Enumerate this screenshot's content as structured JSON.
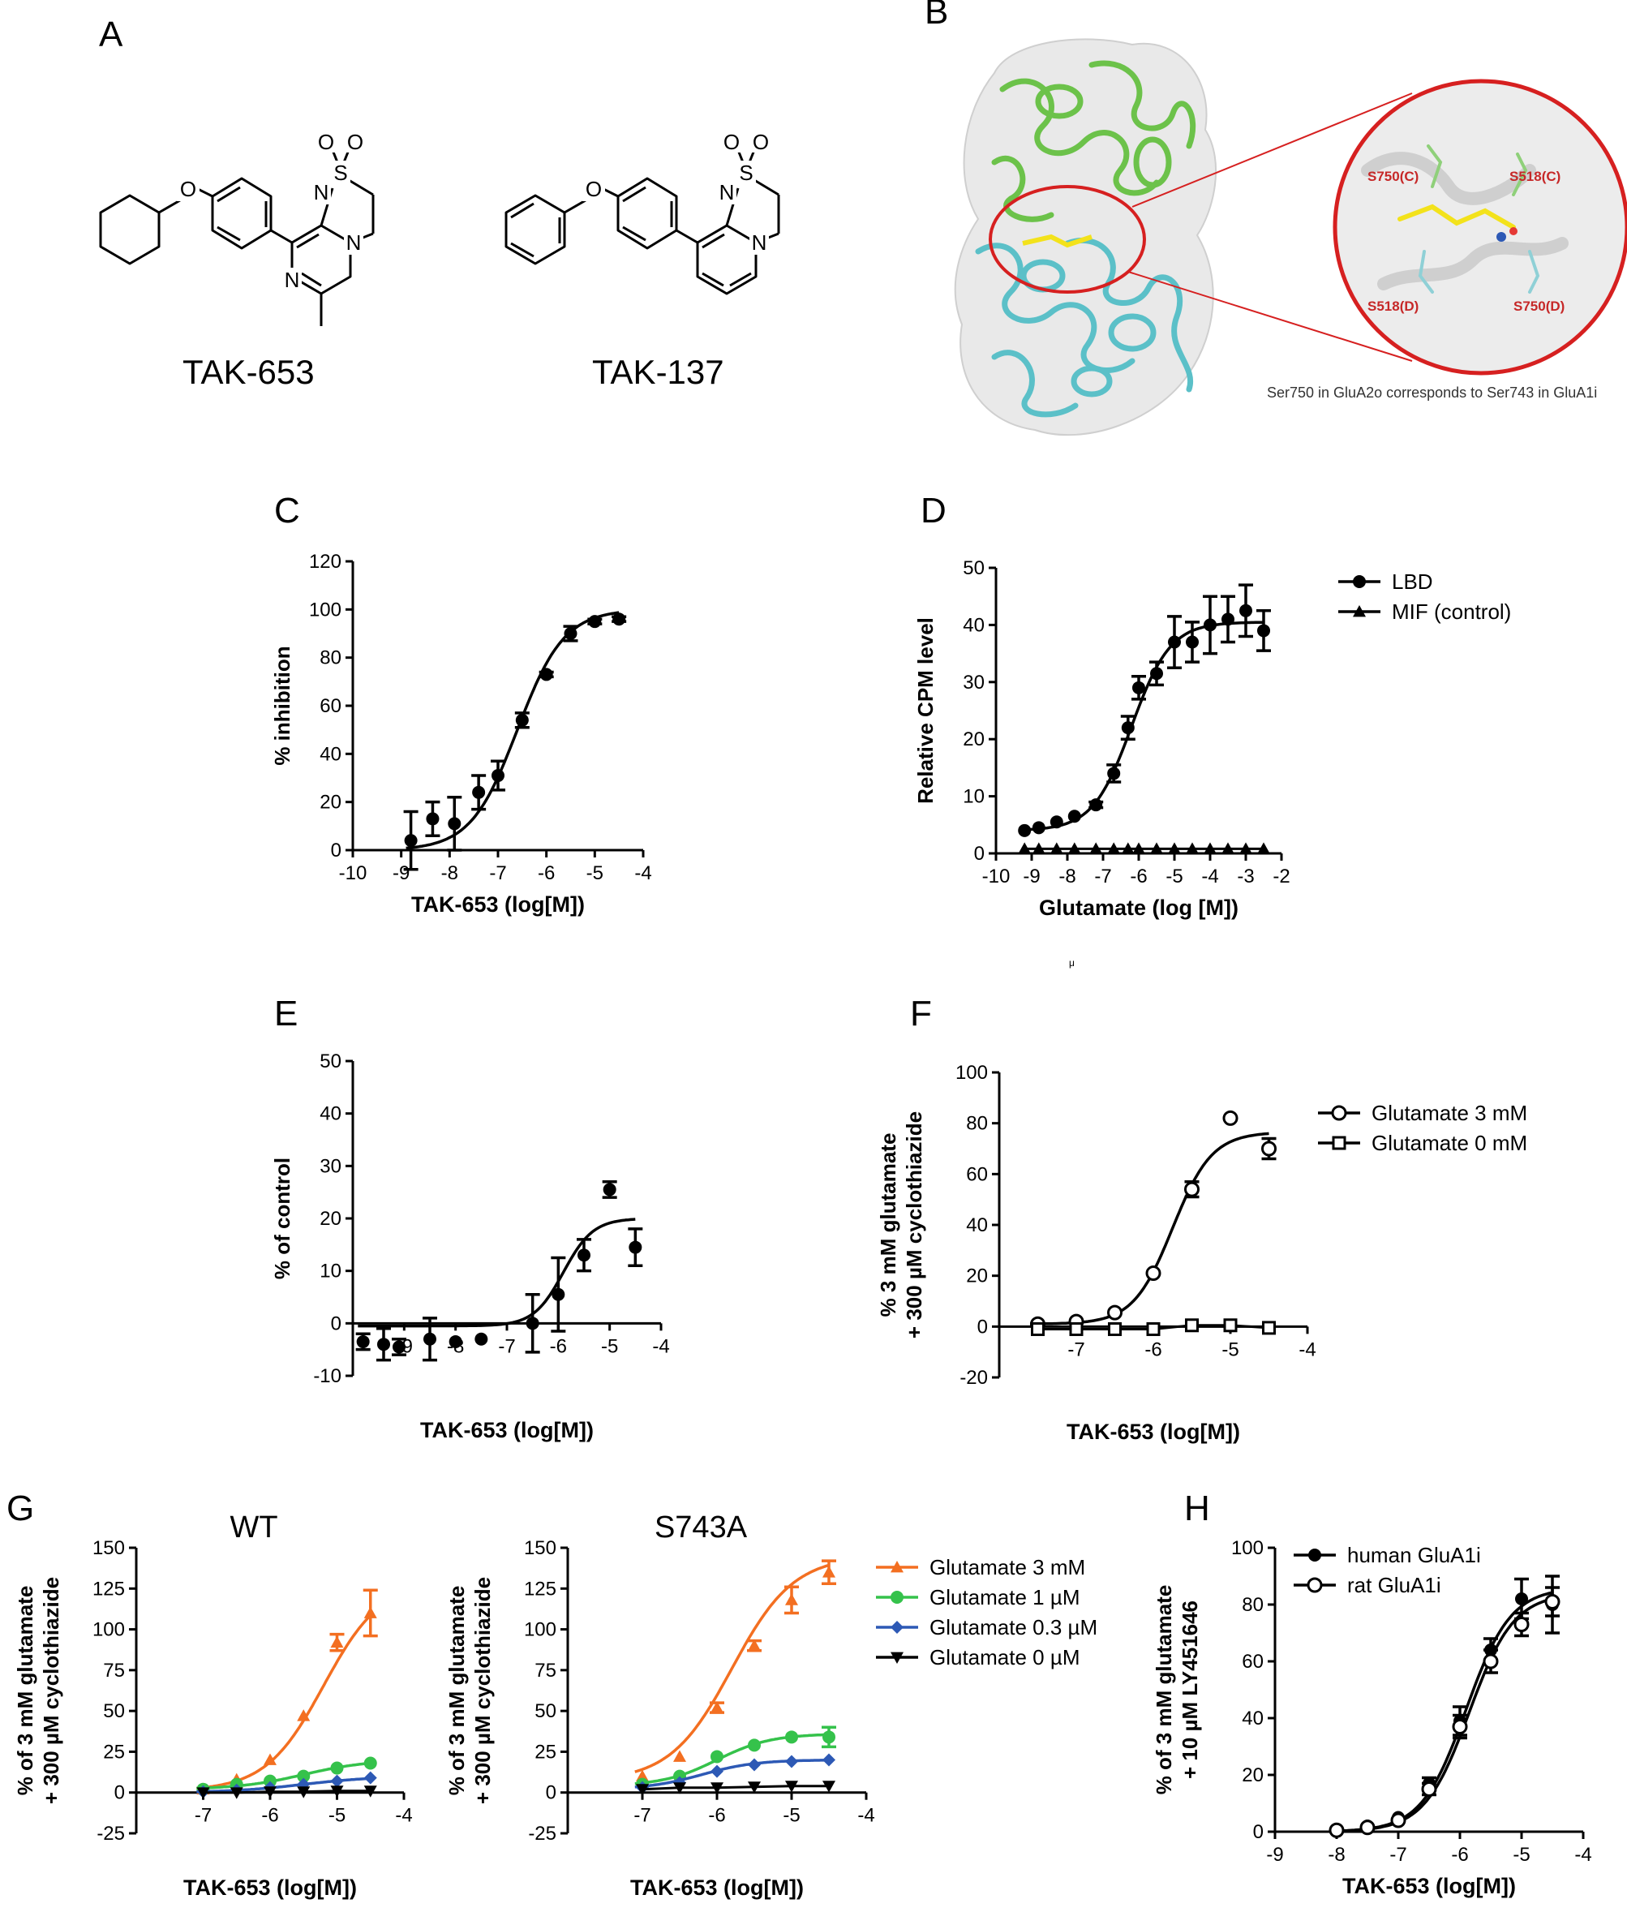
{
  "panel_labels": {
    "A": "A",
    "B": "B",
    "C": "C",
    "D": "D",
    "E": "E",
    "F": "F",
    "G": "G",
    "H": "H"
  },
  "panel_a": {
    "compounds": [
      {
        "name": "TAK-653",
        "atoms": [
          "O",
          "O",
          "O",
          "S",
          "N",
          "N",
          "N"
        ]
      },
      {
        "name": "TAK-137",
        "atoms": [
          "O",
          "O",
          "O",
          "S",
          "N",
          "N"
        ]
      }
    ]
  },
  "panel_b": {
    "residue_labels": [
      "S750(C)",
      "S518(C)",
      "S518(D)",
      "S750(D)"
    ],
    "caption": "Ser750 in GluA2o corresponds to Ser743 in GluA1i",
    "colors": {
      "chain_c": "#6cc24a",
      "chain_d": "#5bc0c8",
      "ligand": "#f3e21b",
      "label": "#c62828",
      "circle": "#d62020",
      "surface": "#e9e9e9"
    }
  },
  "stray_mark": "μ",
  "chart_data": [
    {
      "id": "C",
      "type": "scatter",
      "xlabel": "TAK-653 (log[M])",
      "ylabel": "% inhibition",
      "xlim": [
        -10,
        -4
      ],
      "ylim": [
        0,
        120
      ],
      "xticks": [
        -10,
        -9,
        -8,
        -7,
        -6,
        -5,
        -4
      ],
      "yticks": [
        0,
        20,
        40,
        60,
        80,
        100,
        120
      ],
      "series": [
        {
          "marker": "circle-filled",
          "color": "#000000",
          "x": [
            -8.8,
            -8.35,
            -7.9,
            -7.4,
            -7.0,
            -6.5,
            -6.0,
            -5.5,
            -5.0,
            -4.5
          ],
          "y": [
            4,
            13,
            11,
            24,
            31,
            54,
            73,
            90,
            95,
            96
          ],
          "err": [
            12,
            7,
            11,
            7,
            6,
            3,
            1,
            3,
            1,
            1
          ],
          "fit": {
            "bottom": 0,
            "top": 100,
            "logEC50": -6.6,
            "hill": 0.9
          }
        }
      ]
    },
    {
      "id": "D",
      "type": "scatter",
      "xlabel": "Glutamate (log [M])",
      "ylabel": "Relative CPM level",
      "xlim": [
        -10,
        -2
      ],
      "ylim": [
        0,
        50
      ],
      "xticks": [
        -10,
        -9,
        -8,
        -7,
        -6,
        -5,
        -4,
        -3,
        -2
      ],
      "yticks": [
        0,
        10,
        20,
        30,
        40,
        50
      ],
      "legend": "right",
      "series": [
        {
          "name": "LBD",
          "marker": "circle-filled",
          "color": "#000000",
          "x": [
            -9.2,
            -8.8,
            -8.3,
            -7.8,
            -7.2,
            -6.7,
            -6.3,
            -6.0,
            -5.5,
            -5.0,
            -4.5,
            -4.0,
            -3.5,
            -3.0,
            -2.5
          ],
          "y": [
            4,
            4.5,
            5.5,
            6.5,
            8.5,
            14,
            22,
            29,
            31.5,
            37,
            37,
            40,
            41,
            42.5,
            39
          ],
          "err": [
            0,
            0,
            0,
            0,
            0.5,
            1.5,
            2,
            2,
            2,
            4.5,
            3.5,
            5,
            4,
            4.5,
            3.5
          ],
          "fit": {
            "bottom": 4,
            "top": 40.5,
            "logEC50": -6.2,
            "hill": 0.8
          }
        },
        {
          "name": "MIF (control)",
          "marker": "triangle-filled",
          "color": "#000000",
          "x": [
            -9.2,
            -8.8,
            -8.3,
            -7.8,
            -7.2,
            -6.7,
            -6.3,
            -6.0,
            -5.5,
            -5.0,
            -4.5,
            -4.0,
            -3.5,
            -3.0,
            -2.5
          ],
          "y": [
            0.8,
            0.8,
            0.8,
            0.8,
            0.8,
            0.8,
            0.8,
            0.8,
            0.8,
            0.8,
            0.8,
            0.8,
            0.8,
            0.8,
            0.8
          ],
          "line": true
        }
      ]
    },
    {
      "id": "E",
      "type": "scatter",
      "xlabel": "TAK-653 (log[M])",
      "ylabel": "% of control",
      "xlim": [
        -10,
        -4
      ],
      "ylim": [
        -10,
        50
      ],
      "xticks": [
        -9,
        -8,
        -7,
        -6,
        -5,
        -4
      ],
      "xticklabels": [
        "-9",
        "-8",
        "-7",
        "-6",
        "-5",
        "-4"
      ],
      "yticks": [
        -10,
        0,
        10,
        20,
        30,
        40,
        50
      ],
      "series": [
        {
          "marker": "circle-filled",
          "color": "#000000",
          "x": [
            -9.8,
            -9.4,
            -9.1,
            -8.5,
            -8.0,
            -7.5,
            -6.5,
            -6.0,
            -5.5,
            -5.0,
            -4.5
          ],
          "y": [
            -3.5,
            -4,
            -4.5,
            -3,
            -3.5,
            -3,
            0,
            5.5,
            13,
            25.5,
            14.5
          ],
          "err": [
            1.5,
            3,
            1.5,
            4,
            0,
            0,
            5.5,
            7,
            3,
            1.5,
            3.5
          ],
          "fit": {
            "bottom": -0.5,
            "top": 20,
            "logEC50": -5.9,
            "hill": 1.5
          }
        }
      ]
    },
    {
      "id": "F",
      "type": "scatter",
      "xlabel": "TAK-653 (log[M])",
      "ylabel": "% 3 mM glutamate\n+ 300 µM cyclothiazide",
      "xlim": [
        -8,
        -4
      ],
      "ylim": [
        -20,
        100
      ],
      "xticks": [
        -7,
        -6,
        -5,
        -4
      ],
      "yticks": [
        -20,
        0,
        20,
        40,
        60,
        80,
        100
      ],
      "legend": "right",
      "series": [
        {
          "name": "Glutamate  3 mM",
          "marker": "circle-open",
          "color": "#000000",
          "x": [
            -7.5,
            -7.0,
            -6.5,
            -6.0,
            -5.5,
            -5.0,
            -4.5
          ],
          "y": [
            1,
            2,
            5.5,
            21,
            54,
            82,
            70
          ],
          "err": [
            0,
            0,
            0,
            0,
            3,
            0,
            4
          ],
          "fit": {
            "bottom": 1,
            "top": 76.5,
            "logEC50": -5.75,
            "hill": 1.7
          }
        },
        {
          "name": "Glutamate  0 mM",
          "marker": "square-open",
          "color": "#000000",
          "x": [
            -7.5,
            -7.0,
            -6.5,
            -6.0,
            -5.5,
            -5.0,
            -4.5
          ],
          "y": [
            -1,
            -1,
            -1,
            -1,
            0.5,
            0.5,
            -0.5
          ],
          "line": true
        }
      ]
    },
    {
      "id": "G-WT",
      "type": "scatter",
      "title": "WT",
      "xlabel": "TAK-653 (log[M])",
      "ylabel": "% of 3 mM glutamate\n+ 300 µM cyclothiazide",
      "xlim": [
        -8,
        -4
      ],
      "ylim": [
        -25,
        150
      ],
      "xticks": [
        -7,
        -6,
        -5,
        -4
      ],
      "yticks": [
        -25,
        0,
        25,
        50,
        75,
        100,
        125,
        150
      ],
      "series": [
        {
          "name": "Glutamate  3 mM",
          "marker": "triangle-filled",
          "color": "#f36f21",
          "x": [
            -7.0,
            -6.5,
            -6.0,
            -5.5,
            -5.0,
            -4.5
          ],
          "y": [
            2,
            8,
            20,
            47,
            92,
            110
          ],
          "err": [
            0,
            0,
            0,
            0,
            5,
            14
          ],
          "fit": {
            "bottom": 1,
            "top": 130,
            "logEC50": -5.2,
            "hill": 1.0
          }
        },
        {
          "name": "Glutamate  1 µM",
          "marker": "circle-filled",
          "color": "#35c24b",
          "x": [
            -7.0,
            -6.5,
            -6.0,
            -5.5,
            -5.0,
            -4.5
          ],
          "y": [
            2,
            5,
            7,
            10,
            15,
            18
          ],
          "err": [
            0,
            0,
            0,
            0,
            0,
            0
          ],
          "fit": {
            "bottom": 2,
            "top": 20,
            "logEC50": -5.5,
            "hill": 0.9
          }
        },
        {
          "name": "Glutamate  0.3 µM",
          "marker": "diamond-filled",
          "color": "#2d59b5",
          "x": [
            -7.0,
            -6.5,
            -6.0,
            -5.5,
            -5.0,
            -4.5
          ],
          "y": [
            0.5,
            1.5,
            3,
            5,
            7,
            9
          ],
          "err": [
            0,
            0,
            0,
            0,
            0,
            0
          ],
          "fit": {
            "bottom": 0,
            "top": 10,
            "logEC50": -5.5,
            "hill": 0.8
          }
        },
        {
          "name": "Glutamate  0 µM",
          "marker": "triangle-down-filled",
          "color": "#000000",
          "x": [
            -7.0,
            -6.5,
            -6.0,
            -5.5,
            -5.0,
            -4.5
          ],
          "y": [
            0,
            0,
            0.5,
            0.5,
            1,
            1
          ],
          "err": [
            0,
            0,
            0,
            0,
            0,
            0
          ],
          "line": true
        }
      ]
    },
    {
      "id": "G-S743A",
      "type": "scatter",
      "title": "S743A",
      "xlabel": "TAK-653 (log[M])",
      "ylabel": "% of 3 mM glutamate\n+ 300 µM cyclothiazide",
      "xlim": [
        -8,
        -4
      ],
      "ylim": [
        -25,
        150
      ],
      "xticks": [
        -7,
        -6,
        -5,
        -4
      ],
      "yticks": [
        -25,
        0,
        25,
        50,
        75,
        100,
        125,
        150
      ],
      "legend": "right",
      "series": [
        {
          "name": "Glutamate  3 mM",
          "marker": "triangle-filled",
          "color": "#f36f21",
          "x": [
            -7.0,
            -6.5,
            -6.0,
            -5.5,
            -5.0,
            -4.5
          ],
          "y": [
            10,
            22,
            52,
            90,
            118,
            135
          ],
          "err": [
            0,
            0,
            3,
            3,
            8,
            7
          ],
          "fit": {
            "bottom": 7,
            "top": 145,
            "logEC50": -5.8,
            "hill": 1.05
          }
        },
        {
          "name": "Glutamate  1 µM",
          "marker": "circle-filled",
          "color": "#35c24b",
          "x": [
            -7.0,
            -6.5,
            -6.0,
            -5.5,
            -5.0,
            -4.5
          ],
          "y": [
            5,
            10,
            22,
            29,
            34,
            34
          ],
          "err": [
            0,
            0,
            0,
            0,
            0,
            6
          ],
          "fit": {
            "bottom": 4,
            "top": 36,
            "logEC50": -6.0,
            "hill": 1.2
          }
        },
        {
          "name": "Glutamate  0.3 µM",
          "marker": "diamond-filled",
          "color": "#2d59b5",
          "x": [
            -7.0,
            -6.5,
            -6.0,
            -5.5,
            -5.0,
            -4.5
          ],
          "y": [
            3,
            6,
            13,
            17,
            19,
            20
          ],
          "err": [
            0,
            0,
            0,
            0,
            0,
            0
          ],
          "fit": {
            "bottom": 2,
            "top": 20,
            "logEC50": -6.2,
            "hill": 1.2
          }
        },
        {
          "name": "Glutamate  0 µM",
          "marker": "triangle-down-filled",
          "color": "#000000",
          "x": [
            -7.0,
            -6.5,
            -6.0,
            -5.5,
            -5.0,
            -4.5
          ],
          "y": [
            2,
            3,
            3,
            3.5,
            4,
            4
          ],
          "err": [
            0,
            0,
            0,
            0,
            0,
            0
          ],
          "line": true
        }
      ]
    },
    {
      "id": "H",
      "type": "scatter",
      "xlabel": "TAK-653 (log[M])",
      "ylabel": "% of 3 mM glutamate\n+ 10 µM LY451646",
      "xlim": [
        -9,
        -4
      ],
      "ylim": [
        0,
        100
      ],
      "xticks": [
        -9,
        -8,
        -7,
        -6,
        -5,
        -4
      ],
      "yticks": [
        0,
        20,
        40,
        60,
        80,
        100
      ],
      "legend": "top-left",
      "series": [
        {
          "name": "human GluA1i",
          "marker": "circle-filled",
          "color": "#000000",
          "x": [
            -8.0,
            -7.5,
            -7.0,
            -6.5,
            -6.0,
            -5.5,
            -5.0,
            -4.5
          ],
          "y": [
            0.5,
            2,
            5,
            17,
            39,
            64,
            82,
            80
          ],
          "err": [
            0,
            0,
            0,
            2,
            5,
            4,
            7,
            10
          ],
          "fit": {
            "bottom": 0,
            "top": 86,
            "logEC50": -5.9,
            "hill": 1.2
          }
        },
        {
          "name": "rat GluA1i",
          "marker": "circle-open",
          "color": "#000000",
          "x": [
            -8.0,
            -7.5,
            -7.0,
            -6.5,
            -6.0,
            -5.5,
            -5.0,
            -4.5
          ],
          "y": [
            0.5,
            1.5,
            4,
            15,
            37,
            60,
            73,
            81
          ],
          "err": [
            0,
            0,
            0,
            2,
            4,
            4,
            4,
            5
          ],
          "fit": {
            "bottom": 0,
            "top": 84,
            "logEC50": -5.85,
            "hill": 1.2
          }
        }
      ]
    }
  ]
}
